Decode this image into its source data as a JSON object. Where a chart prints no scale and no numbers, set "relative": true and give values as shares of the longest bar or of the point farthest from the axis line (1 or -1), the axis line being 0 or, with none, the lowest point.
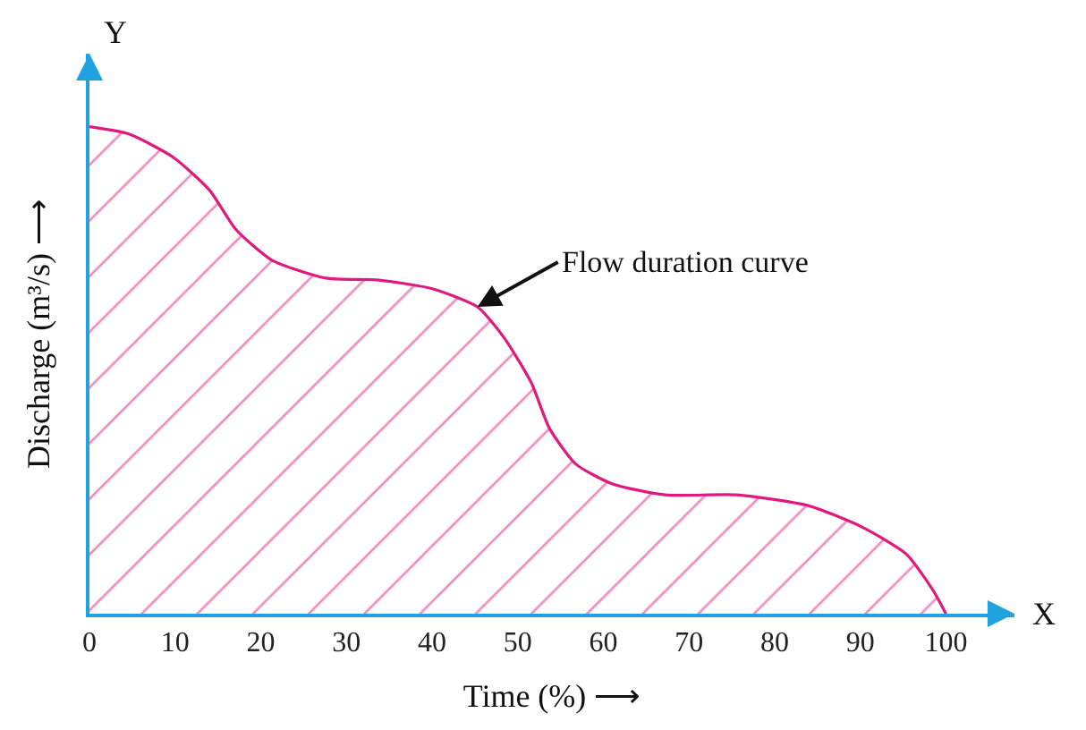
{
  "chart_data": {
    "type": "area",
    "relative": true,
    "xlabel": "Time (%) ⟶",
    "ylabel": "Discharge (m³/s) ⟶",
    "x": [
      0,
      4.6,
      9.8,
      14,
      17.1,
      21.3,
      27.6,
      33.8,
      40.1,
      45.3,
      48.4,
      51.6,
      53.7,
      56.8,
      61,
      67.2,
      75.6,
      83.9,
      90.2,
      95.4,
      98.5,
      100
    ],
    "series": [
      {
        "color": "#e0197f",
        "values": [
          1.0,
          0.985,
          0.937,
          0.87,
          0.789,
          0.726,
          0.689,
          0.685,
          0.667,
          0.63,
          0.567,
          0.474,
          0.381,
          0.307,
          0.267,
          0.244,
          0.244,
          0.222,
          0.178,
          0.122,
          0.048,
          0
        ]
      }
    ],
    "xlim": [
      0,
      108
    ],
    "xticks": [
      0,
      10,
      20,
      30,
      40,
      50,
      60,
      70,
      80,
      90,
      100
    ],
    "annotations": [
      {
        "text": "Flow duration curve",
        "x": 45.3,
        "y": 0.63
      },
      "X",
      "Y"
    ],
    "marker": "none",
    "line_style": "solid"
  }
}
